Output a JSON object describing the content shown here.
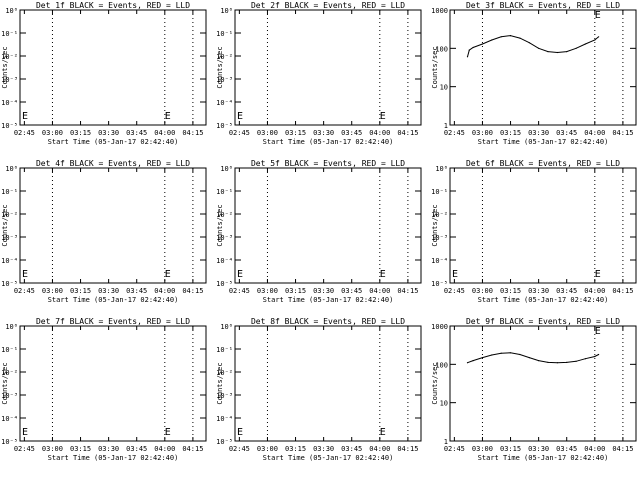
{
  "chart_data": [
    {
      "type": "line",
      "title": "Det 1f BLACK = Events, RED = LLD",
      "xlabel": "Start Time (05-Jan-17 02:42:40)",
      "ylabel": "Counts/sec",
      "x_ticks": [
        "02:45",
        "03:00",
        "03:15",
        "03:30",
        "03:45",
        "04:00",
        "04:15"
      ],
      "y_ticks": [
        "10⁰",
        "10⁻¹",
        "10⁻²",
        "10⁻³",
        "10⁻⁴",
        "10⁻⁵"
      ],
      "y_scale": "log",
      "ylim": [
        1,
        1e-05
      ],
      "vlines": [
        "03:00",
        "04:00",
        "04:15"
      ],
      "markers": [
        "E",
        "E"
      ],
      "series": []
    },
    {
      "type": "line",
      "title": "Det 2f BLACK = Events, RED = LLD",
      "xlabel": "Start Time (05-Jan-17 02:42:40)",
      "ylabel": "Counts/sec",
      "x_ticks": [
        "02:45",
        "03:00",
        "03:15",
        "03:30",
        "03:45",
        "04:00",
        "04:15"
      ],
      "y_ticks": [
        "10⁰",
        "10⁻¹",
        "10⁻²",
        "10⁻³",
        "10⁻⁴",
        "10⁻⁵"
      ],
      "y_scale": "log",
      "ylim": [
        1,
        1e-05
      ],
      "vlines": [
        "03:00",
        "04:00",
        "04:15"
      ],
      "markers": [
        "E",
        "E"
      ],
      "series": []
    },
    {
      "type": "line",
      "title": "Det 3f BLACK = Events, RED = LLD",
      "xlabel": "Start Time (05-Jan-17 02:42:40)",
      "ylabel": "Counts/sec",
      "x_ticks": [
        "02:45",
        "03:00",
        "03:15",
        "03:30",
        "03:45",
        "04:00",
        "04:15"
      ],
      "y_ticks": [
        "1000",
        "100",
        "10",
        "1"
      ],
      "y_scale": "log",
      "ylim": [
        1,
        1000
      ],
      "vlines": [
        "03:00",
        "04:00",
        "04:15"
      ],
      "markers": [
        "E"
      ],
      "series": [
        {
          "x": [
            "02:52",
            "02:53",
            "02:55",
            "03:00",
            "03:05",
            "03:10",
            "03:15",
            "03:20",
            "03:25",
            "03:30",
            "03:35",
            "03:40",
            "03:45",
            "03:50",
            "03:55",
            "04:00",
            "04:02"
          ],
          "y": [
            60,
            90,
            105,
            130,
            165,
            200,
            215,
            185,
            140,
            100,
            82,
            78,
            82,
            100,
            130,
            165,
            200
          ]
        }
      ]
    },
    {
      "type": "line",
      "title": "Det 4f BLACK = Events, RED = LLD",
      "xlabel": "Start Time (05-Jan-17 02:42:40)",
      "ylabel": "Counts/sec",
      "x_ticks": [
        "02:45",
        "03:00",
        "03:15",
        "03:30",
        "03:45",
        "04:00",
        "04:15"
      ],
      "y_ticks": [
        "10⁰",
        "10⁻¹",
        "10⁻²",
        "10⁻³",
        "10⁻⁴",
        "10⁻⁵"
      ],
      "y_scale": "log",
      "ylim": [
        1,
        1e-05
      ],
      "vlines": [
        "03:00",
        "04:00",
        "04:15"
      ],
      "markers": [
        "E",
        "E"
      ],
      "series": []
    },
    {
      "type": "line",
      "title": "Det 5f BLACK = Events, RED = LLD",
      "xlabel": "Start Time (05-Jan-17 02:42:40)",
      "ylabel": "Counts/sec",
      "x_ticks": [
        "02:45",
        "03:00",
        "03:15",
        "03:30",
        "03:45",
        "04:00",
        "04:15"
      ],
      "y_ticks": [
        "10⁰",
        "10⁻¹",
        "10⁻²",
        "10⁻³",
        "10⁻⁴",
        "10⁻⁵"
      ],
      "y_scale": "log",
      "ylim": [
        1,
        1e-05
      ],
      "vlines": [
        "03:00",
        "04:00",
        "04:15"
      ],
      "markers": [
        "E",
        "E"
      ],
      "series": []
    },
    {
      "type": "line",
      "title": "Det 6f BLACK = Events, RED = LLD",
      "xlabel": "Start Time (05-Jan-17 02:42:40)",
      "ylabel": "Counts/sec",
      "x_ticks": [
        "02:45",
        "03:00",
        "03:15",
        "03:30",
        "03:45",
        "04:00",
        "04:15"
      ],
      "y_ticks": [
        "10⁰",
        "10⁻¹",
        "10⁻²",
        "10⁻³",
        "10⁻⁴",
        "10⁻⁵"
      ],
      "y_scale": "log",
      "ylim": [
        1,
        1e-05
      ],
      "vlines": [
        "03:00",
        "04:00",
        "04:15"
      ],
      "markers": [
        "E",
        "E"
      ],
      "series": []
    },
    {
      "type": "line",
      "title": "Det 7f BLACK = Events, RED = LLD",
      "xlabel": "Start Time (05-Jan-17 02:42:40)",
      "ylabel": "Counts/sec",
      "x_ticks": [
        "02:45",
        "03:00",
        "03:15",
        "03:30",
        "03:45",
        "04:00",
        "04:15"
      ],
      "y_ticks": [
        "10⁰",
        "10⁻¹",
        "10⁻²",
        "10⁻³",
        "10⁻⁴",
        "10⁻⁵"
      ],
      "y_scale": "log",
      "ylim": [
        1,
        1e-05
      ],
      "vlines": [
        "03:00",
        "04:00",
        "04:15"
      ],
      "markers": [
        "E",
        "E"
      ],
      "series": []
    },
    {
      "type": "line",
      "title": "Det 8f BLACK = Events, RED = LLD",
      "xlabel": "Start Time (05-Jan-17 02:42:40)",
      "ylabel": "Counts/sec",
      "x_ticks": [
        "02:45",
        "03:00",
        "03:15",
        "03:30",
        "03:45",
        "04:00",
        "04:15"
      ],
      "y_ticks": [
        "10⁰",
        "10⁻¹",
        "10⁻²",
        "10⁻³",
        "10⁻⁴",
        "10⁻⁵"
      ],
      "y_scale": "log",
      "ylim": [
        1,
        1e-05
      ],
      "vlines": [
        "03:00",
        "04:00",
        "04:15"
      ],
      "markers": [
        "E",
        "E"
      ],
      "series": []
    },
    {
      "type": "line",
      "title": "Det 9f BLACK = Events, RED = LLD",
      "xlabel": "Start Time (05-Jan-17 02:42:40)",
      "ylabel": "Counts/sec",
      "x_ticks": [
        "02:45",
        "03:00",
        "03:15",
        "03:30",
        "03:45",
        "04:00",
        "04:15"
      ],
      "y_ticks": [
        "1000",
        "100",
        "10",
        "1"
      ],
      "y_scale": "log",
      "ylim": [
        1,
        1000
      ],
      "vlines": [
        "03:00",
        "04:00",
        "04:15"
      ],
      "markers": [
        "E"
      ],
      "series": [
        {
          "x": [
            "02:52",
            "02:55",
            "03:00",
            "03:05",
            "03:10",
            "03:15",
            "03:20",
            "03:25",
            "03:30",
            "03:35",
            "03:40",
            "03:45",
            "03:50",
            "03:55",
            "04:00",
            "04:02"
          ],
          "y": [
            110,
            125,
            150,
            175,
            195,
            200,
            180,
            150,
            125,
            112,
            110,
            112,
            120,
            140,
            160,
            180
          ]
        }
      ]
    }
  ]
}
